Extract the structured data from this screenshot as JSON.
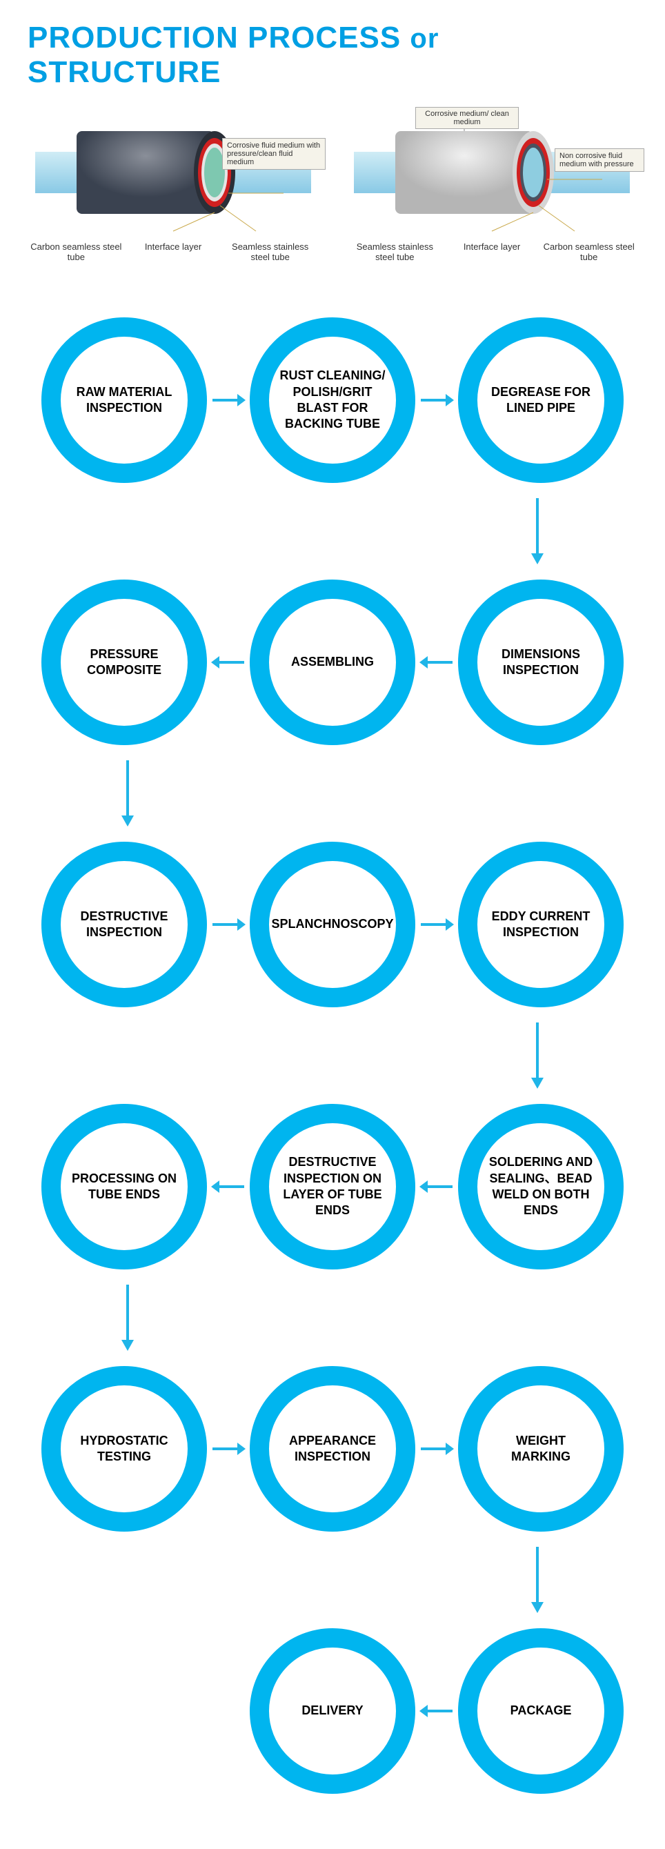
{
  "title_main": "PRODUCTION PROCESS",
  "title_or": "or",
  "title_structure": "STRUCTURE",
  "colors": {
    "accent": "#009fe3",
    "circle_border": "#00b5ef",
    "arrow": "#1fb5e8",
    "text": "#000000"
  },
  "tube_left": {
    "callout": "Corrosive fluid medium with pressure/clean fluid medium",
    "labels": [
      "Carbon seamless steel tube",
      "Interface layer",
      "Seamless stainless steel tube"
    ]
  },
  "tube_right": {
    "callout_top": "Corrosive medium/ clean medium",
    "callout_side": "Non corrosive fluid medium with pressure",
    "labels": [
      "Seamless stainless steel tube",
      "Interface layer",
      "Carbon seamless steel tube"
    ]
  },
  "flow": {
    "rows": [
      {
        "dir": "right",
        "nodes": [
          "RAW MATERIAL INSPECTION",
          "RUST CLEANING/ POLISH/GRIT BLAST FOR BACKING TUBE",
          "DEGREASE FOR LINED PIPE"
        ]
      },
      {
        "dir": "left",
        "nodes": [
          "PRESSURE COMPOSITE",
          "ASSEMBLING",
          "DIMENSIONS INSPECTION"
        ]
      },
      {
        "dir": "right",
        "nodes": [
          "DESTRUCTIVE INSPECTION",
          "SPLANCHNOSCOPY",
          "EDDY CURRENT INSPECTION"
        ]
      },
      {
        "dir": "left",
        "nodes": [
          "PROCESSING ON TUBE ENDS",
          "DESTRUCTIVE INSPECTION ON LAYER OF TUBE ENDS",
          "SOLDERING AND SEALING、BEAD WELD ON BOTH ENDS"
        ]
      },
      {
        "dir": "right",
        "nodes": [
          "HYDROSTATIC TESTING",
          "APPEARANCE INSPECTION",
          "WEIGHT MARKING"
        ]
      },
      {
        "dir": "left",
        "nodes": [
          "",
          "DELIVERY",
          "PACKAGE"
        ]
      }
    ],
    "vconnectors": [
      "right",
      "left",
      "right",
      "left",
      "right"
    ]
  }
}
